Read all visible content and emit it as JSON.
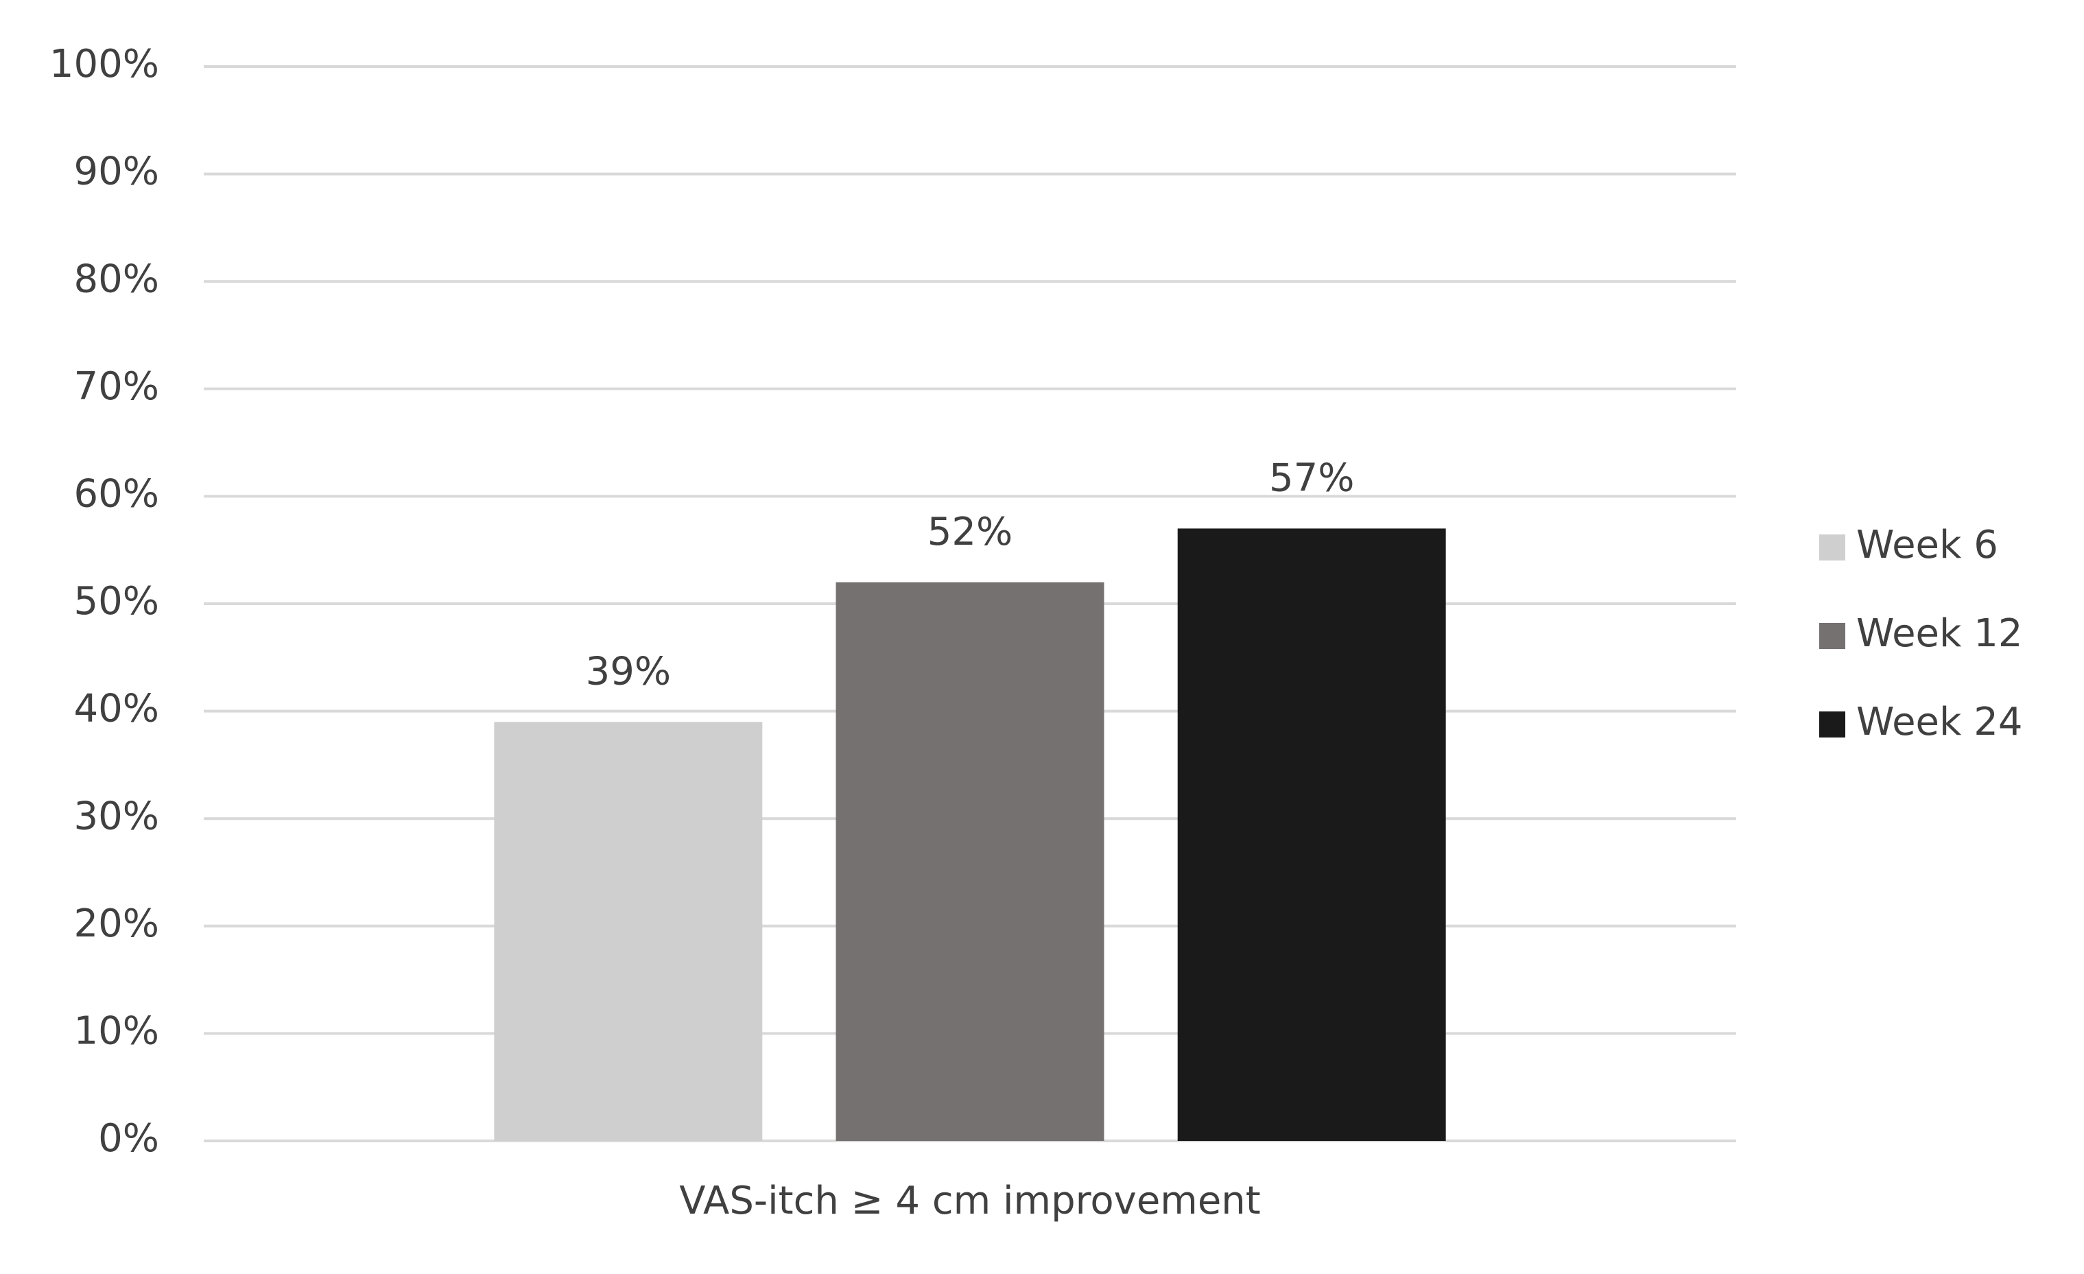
{
  "chart_data": {
    "type": "bar",
    "categories": [
      "VAS-itch ≥ 4 cm improvement"
    ],
    "series": [
      {
        "name": "Week 6",
        "color": "#d0cfcf",
        "values": [
          39
        ],
        "value_labels": [
          "39%"
        ]
      },
      {
        "name": "Week 12",
        "color": "#757170",
        "values": [
          52
        ],
        "value_labels": [
          "52%"
        ]
      },
      {
        "name": "Week 24",
        "color": "#1a1a1a",
        "values": [
          57
        ],
        "value_labels": [
          "57%"
        ]
      }
    ],
    "ylim": [
      0,
      100
    ],
    "yticks": [
      {
        "value": 0,
        "label": "0%"
      },
      {
        "value": 10,
        "label": "10%"
      },
      {
        "value": 20,
        "label": "20%"
      },
      {
        "value": 30,
        "label": "30%"
      },
      {
        "value": 40,
        "label": "40%"
      },
      {
        "value": 50,
        "label": "50%"
      },
      {
        "value": 60,
        "label": "60%"
      },
      {
        "value": 70,
        "label": "70%"
      },
      {
        "value": 80,
        "label": "80%"
      },
      {
        "value": 90,
        "label": "90%"
      },
      {
        "value": 100,
        "label": "100%"
      }
    ],
    "grid": true,
    "legend": "right"
  }
}
